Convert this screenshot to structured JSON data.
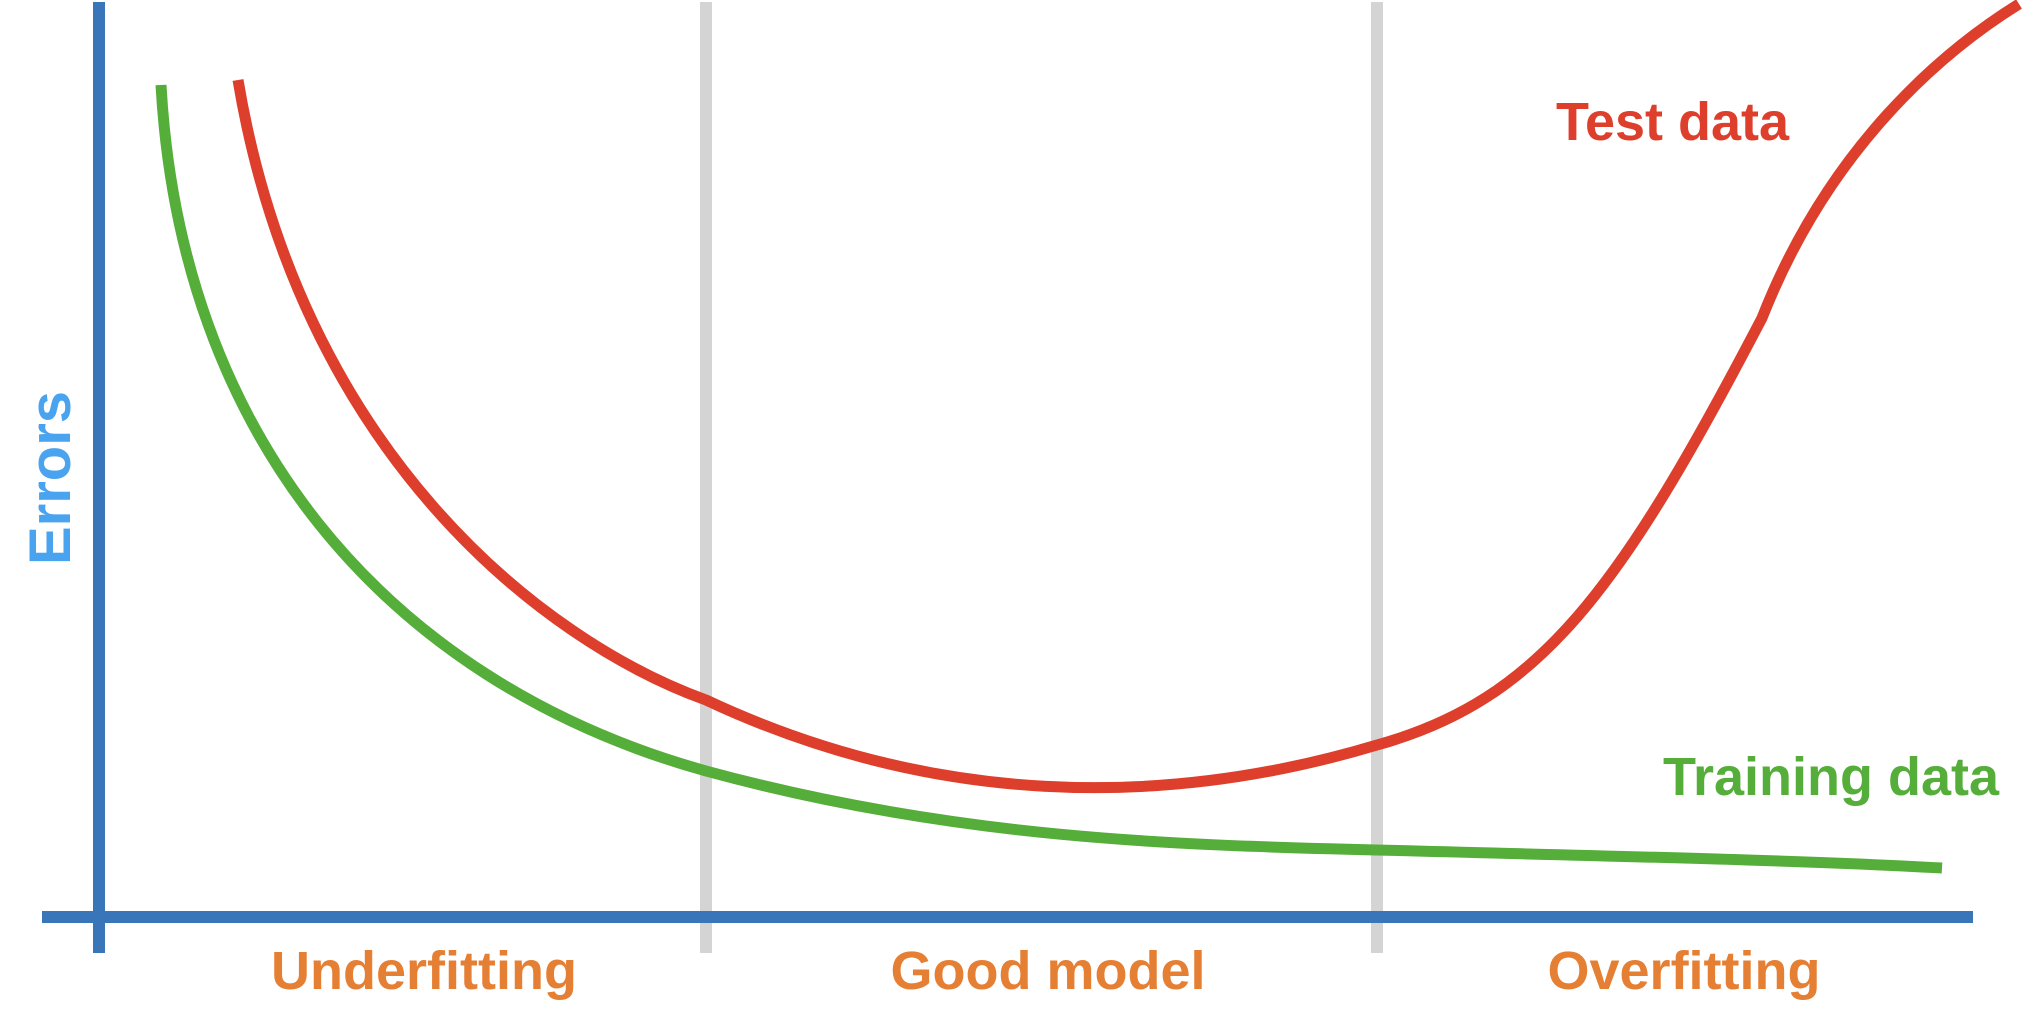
{
  "labels": {
    "y_axis": "Errors",
    "test_series": "Test data",
    "training_series": "Training data",
    "region_left": "Underfitting",
    "region_middle": "Good model",
    "region_right": "Overfitting"
  },
  "colors": {
    "axis": "#3875b9",
    "y_label": "#4aa3ee",
    "divider": "#d4d4d4",
    "test_curve": "#dd3f2c",
    "training_curve": "#55ad3a",
    "region_text": "#e57f34"
  }
}
